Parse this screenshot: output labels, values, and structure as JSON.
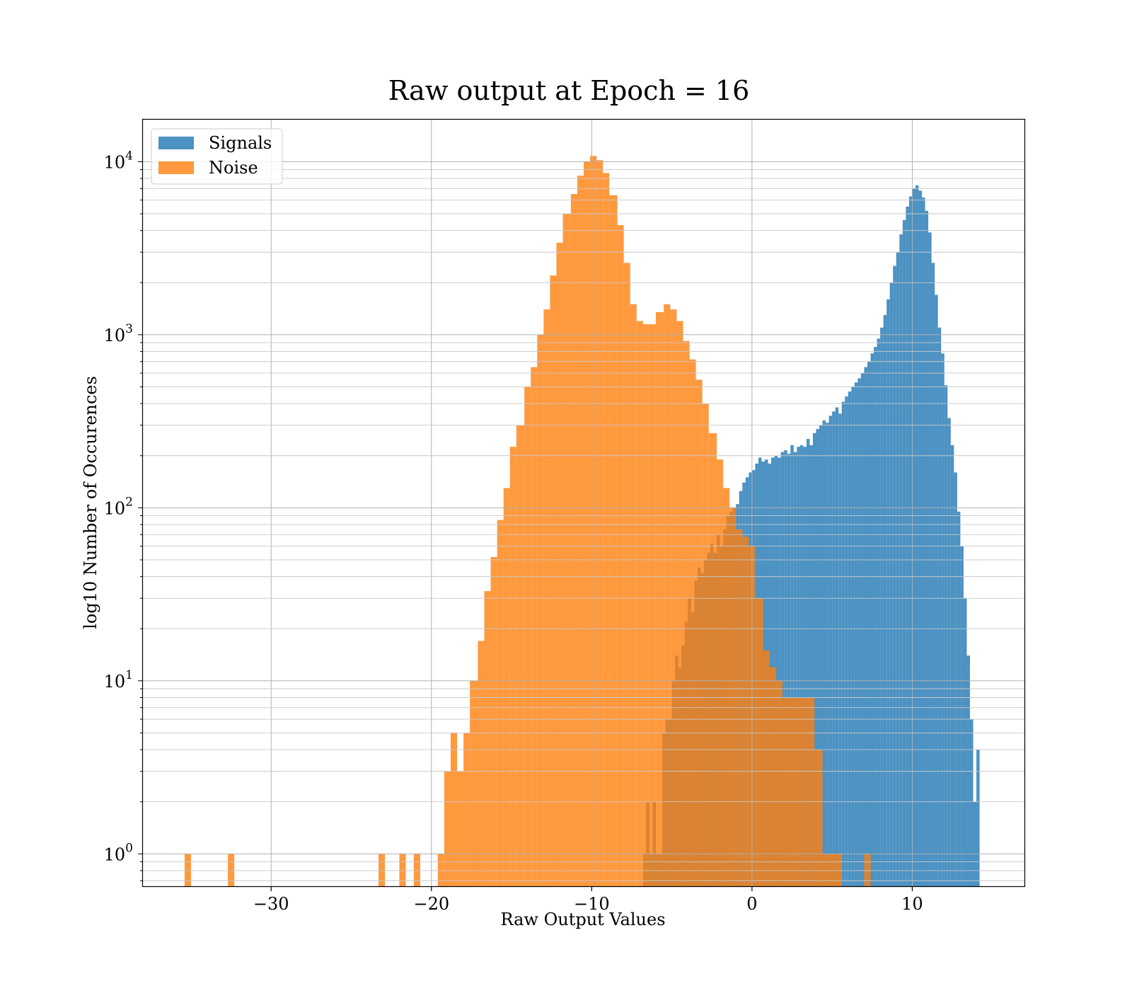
{
  "chart_data": {
    "type": "bar",
    "title": "Raw output at Epoch = 16",
    "xlabel": "Raw Output Values",
    "ylabel": "log10 Number of Occurences",
    "xlim": [
      -38,
      17
    ],
    "ylim": [
      0.65,
      17500
    ],
    "yscale": "log",
    "grid": true,
    "legend_position": "top-left",
    "x_ticks": [
      -30,
      -20,
      -10,
      0,
      10
    ],
    "x_tick_labels": [
      "−30",
      "−20",
      "−10",
      "0",
      "10"
    ],
    "y_ticks": [
      {
        "value": 1,
        "base": "10",
        "exp": "0"
      },
      {
        "value": 10,
        "base": "10",
        "exp": "1"
      },
      {
        "value": 100,
        "base": "10",
        "exp": "2"
      },
      {
        "value": 1000,
        "base": "10",
        "exp": "3"
      },
      {
        "value": 10000,
        "base": "10",
        "exp": "4"
      }
    ],
    "series": [
      {
        "name": "Signals",
        "color": "#1f77b4",
        "opacity": 0.8,
        "bins": [
          {
            "x0": -6.8,
            "x1": -6.6,
            "count": 1
          },
          {
            "x0": -6.6,
            "x1": -6.4,
            "count": 2
          },
          {
            "x0": -6.4,
            "x1": -6.2,
            "count": 1
          },
          {
            "x0": -6.2,
            "x1": -6.0,
            "count": 2
          },
          {
            "x0": -6.0,
            "x1": -5.8,
            "count": 1
          },
          {
            "x0": -5.8,
            "x1": -5.6,
            "count": 1
          },
          {
            "x0": -5.6,
            "x1": -5.4,
            "count": 5
          },
          {
            "x0": -5.4,
            "x1": -5.2,
            "count": 6
          },
          {
            "x0": -5.2,
            "x1": -5.0,
            "count": 6
          },
          {
            "x0": -5.0,
            "x1": -4.8,
            "count": 10
          },
          {
            "x0": -4.8,
            "x1": -4.6,
            "count": 14
          },
          {
            "x0": -4.6,
            "x1": -4.4,
            "count": 12
          },
          {
            "x0": -4.4,
            "x1": -4.2,
            "count": 16
          },
          {
            "x0": -4.2,
            "x1": -4.0,
            "count": 22
          },
          {
            "x0": -4.0,
            "x1": -3.8,
            "count": 30
          },
          {
            "x0": -3.8,
            "x1": -3.6,
            "count": 25
          },
          {
            "x0": -3.6,
            "x1": -3.4,
            "count": 38
          },
          {
            "x0": -3.4,
            "x1": -3.2,
            "count": 45
          },
          {
            "x0": -3.2,
            "x1": -3.0,
            "count": 42
          },
          {
            "x0": -3.0,
            "x1": -2.8,
            "count": 50
          },
          {
            "x0": -2.8,
            "x1": -2.6,
            "count": 55
          },
          {
            "x0": -2.6,
            "x1": -2.4,
            "count": 62
          },
          {
            "x0": -2.4,
            "x1": -2.2,
            "count": 55
          },
          {
            "x0": -2.2,
            "x1": -2.0,
            "count": 70
          },
          {
            "x0": -2.0,
            "x1": -1.8,
            "count": 60
          },
          {
            "x0": -1.8,
            "x1": -1.6,
            "count": 75
          },
          {
            "x0": -1.6,
            "x1": -1.4,
            "count": 90
          },
          {
            "x0": -1.4,
            "x1": -1.2,
            "count": 95
          },
          {
            "x0": -1.2,
            "x1": -1.0,
            "count": 100
          },
          {
            "x0": -1.0,
            "x1": -0.8,
            "count": 105
          },
          {
            "x0": -0.8,
            "x1": -0.6,
            "count": 125
          },
          {
            "x0": -0.6,
            "x1": -0.4,
            "count": 140
          },
          {
            "x0": -0.4,
            "x1": -0.2,
            "count": 150
          },
          {
            "x0": -0.2,
            "x1": 0.0,
            "count": 160
          },
          {
            "x0": 0.0,
            "x1": 0.2,
            "count": 165
          },
          {
            "x0": 0.2,
            "x1": 0.4,
            "count": 180
          },
          {
            "x0": 0.4,
            "x1": 0.6,
            "count": 195
          },
          {
            "x0": 0.6,
            "x1": 0.8,
            "count": 185
          },
          {
            "x0": 0.8,
            "x1": 1.0,
            "count": 190
          },
          {
            "x0": 1.0,
            "x1": 1.2,
            "count": 180
          },
          {
            "x0": 1.2,
            "x1": 1.4,
            "count": 195
          },
          {
            "x0": 1.4,
            "x1": 1.6,
            "count": 200
          },
          {
            "x0": 1.6,
            "x1": 1.8,
            "count": 195
          },
          {
            "x0": 1.8,
            "x1": 2.0,
            "count": 210
          },
          {
            "x0": 2.0,
            "x1": 2.2,
            "count": 215
          },
          {
            "x0": 2.2,
            "x1": 2.4,
            "count": 205
          },
          {
            "x0": 2.4,
            "x1": 2.6,
            "count": 230
          },
          {
            "x0": 2.6,
            "x1": 2.8,
            "count": 210
          },
          {
            "x0": 2.8,
            "x1": 3.0,
            "count": 225
          },
          {
            "x0": 3.0,
            "x1": 3.2,
            "count": 230
          },
          {
            "x0": 3.2,
            "x1": 3.4,
            "count": 225
          },
          {
            "x0": 3.4,
            "x1": 3.6,
            "count": 250
          },
          {
            "x0": 3.6,
            "x1": 3.8,
            "count": 230
          },
          {
            "x0": 3.8,
            "x1": 4.0,
            "count": 270
          },
          {
            "x0": 4.0,
            "x1": 4.2,
            "count": 285
          },
          {
            "x0": 4.2,
            "x1": 4.4,
            "count": 300
          },
          {
            "x0": 4.4,
            "x1": 4.6,
            "count": 320
          },
          {
            "x0": 4.6,
            "x1": 4.8,
            "count": 310
          },
          {
            "x0": 4.8,
            "x1": 5.0,
            "count": 340
          },
          {
            "x0": 5.0,
            "x1": 5.2,
            "count": 360
          },
          {
            "x0": 5.2,
            "x1": 5.4,
            "count": 380
          },
          {
            "x0": 5.4,
            "x1": 5.6,
            "count": 350
          },
          {
            "x0": 5.6,
            "x1": 5.8,
            "count": 410
          },
          {
            "x0": 5.8,
            "x1": 6.0,
            "count": 440
          },
          {
            "x0": 6.0,
            "x1": 6.2,
            "count": 470
          },
          {
            "x0": 6.2,
            "x1": 6.4,
            "count": 500
          },
          {
            "x0": 6.4,
            "x1": 6.6,
            "count": 530
          },
          {
            "x0": 6.6,
            "x1": 6.8,
            "count": 560
          },
          {
            "x0": 6.8,
            "x1": 7.0,
            "count": 600
          },
          {
            "x0": 7.0,
            "x1": 7.2,
            "count": 650
          },
          {
            "x0": 7.2,
            "x1": 7.4,
            "count": 700
          },
          {
            "x0": 7.4,
            "x1": 7.6,
            "count": 780
          },
          {
            "x0": 7.6,
            "x1": 7.8,
            "count": 850
          },
          {
            "x0": 7.8,
            "x1": 8.0,
            "count": 950
          },
          {
            "x0": 8.0,
            "x1": 8.2,
            "count": 1100
          },
          {
            "x0": 8.2,
            "x1": 8.4,
            "count": 1300
          },
          {
            "x0": 8.4,
            "x1": 8.6,
            "count": 1600
          },
          {
            "x0": 8.6,
            "x1": 8.8,
            "count": 2000
          },
          {
            "x0": 8.8,
            "x1": 9.0,
            "count": 2500
          },
          {
            "x0": 9.0,
            "x1": 9.2,
            "count": 3000
          },
          {
            "x0": 9.2,
            "x1": 9.4,
            "count": 3800
          },
          {
            "x0": 9.4,
            "x1": 9.6,
            "count": 4600
          },
          {
            "x0": 9.6,
            "x1": 9.8,
            "count": 5500
          },
          {
            "x0": 9.8,
            "x1": 10.0,
            "count": 6300
          },
          {
            "x0": 10.0,
            "x1": 10.2,
            "count": 7000
          },
          {
            "x0": 10.2,
            "x1": 10.4,
            "count": 7300
          },
          {
            "x0": 10.4,
            "x1": 10.6,
            "count": 6800
          },
          {
            "x0": 10.6,
            "x1": 10.8,
            "count": 6200
          },
          {
            "x0": 10.8,
            "x1": 11.0,
            "count": 5200
          },
          {
            "x0": 11.0,
            "x1": 11.2,
            "count": 3900
          },
          {
            "x0": 11.2,
            "x1": 11.4,
            "count": 2600
          },
          {
            "x0": 11.4,
            "x1": 11.6,
            "count": 1700
          },
          {
            "x0": 11.6,
            "x1": 11.8,
            "count": 1100
          },
          {
            "x0": 11.8,
            "x1": 12.0,
            "count": 780
          },
          {
            "x0": 12.0,
            "x1": 12.2,
            "count": 510
          },
          {
            "x0": 12.2,
            "x1": 12.4,
            "count": 330
          },
          {
            "x0": 12.4,
            "x1": 12.6,
            "count": 230
          },
          {
            "x0": 12.6,
            "x1": 12.8,
            "count": 160
          },
          {
            "x0": 12.8,
            "x1": 13.0,
            "count": 95
          },
          {
            "x0": 13.0,
            "x1": 13.2,
            "count": 60
          },
          {
            "x0": 13.2,
            "x1": 13.4,
            "count": 30
          },
          {
            "x0": 13.4,
            "x1": 13.6,
            "count": 14
          },
          {
            "x0": 13.6,
            "x1": 13.8,
            "count": 6
          },
          {
            "x0": 13.8,
            "x1": 14.0,
            "count": 2
          },
          {
            "x0": 14.0,
            "x1": 14.2,
            "count": 4
          }
        ]
      },
      {
        "name": "Noise",
        "color": "#ff7f0e",
        "opacity": 0.8,
        "bins": [
          {
            "x0": -35.4,
            "x1": -35.0,
            "count": 1
          },
          {
            "x0": -32.7,
            "x1": -32.3,
            "count": 1
          },
          {
            "x0": -23.3,
            "x1": -22.9,
            "count": 1
          },
          {
            "x0": -22.0,
            "x1": -21.6,
            "count": 1
          },
          {
            "x0": -21.1,
            "x1": -20.7,
            "count": 1
          },
          {
            "x0": -19.6,
            "x1": -19.2,
            "count": 1
          },
          {
            "x0": -19.2,
            "x1": -18.8,
            "count": 3
          },
          {
            "x0": -18.8,
            "x1": -18.4,
            "count": 5
          },
          {
            "x0": -18.4,
            "x1": -18.0,
            "count": 3
          },
          {
            "x0": -18.0,
            "x1": -17.6,
            "count": 5
          },
          {
            "x0": -17.6,
            "x1": -17.1,
            "count": 10
          },
          {
            "x0": -17.1,
            "x1": -16.7,
            "count": 17
          },
          {
            "x0": -16.7,
            "x1": -16.3,
            "count": 33
          },
          {
            "x0": -16.3,
            "x1": -15.9,
            "count": 52
          },
          {
            "x0": -15.9,
            "x1": -15.5,
            "count": 85
          },
          {
            "x0": -15.5,
            "x1": -15.1,
            "count": 130
          },
          {
            "x0": -15.1,
            "x1": -14.7,
            "count": 225
          },
          {
            "x0": -14.7,
            "x1": -14.2,
            "count": 300
          },
          {
            "x0": -14.2,
            "x1": -13.8,
            "count": 500
          },
          {
            "x0": -13.8,
            "x1": -13.4,
            "count": 650
          },
          {
            "x0": -13.4,
            "x1": -13.0,
            "count": 1000
          },
          {
            "x0": -13.0,
            "x1": -12.6,
            "count": 1400
          },
          {
            "x0": -12.6,
            "x1": -12.2,
            "count": 2200
          },
          {
            "x0": -12.2,
            "x1": -11.8,
            "count": 3400
          },
          {
            "x0": -11.8,
            "x1": -11.3,
            "count": 5000
          },
          {
            "x0": -11.3,
            "x1": -10.9,
            "count": 6500
          },
          {
            "x0": -10.9,
            "x1": -10.5,
            "count": 8300
          },
          {
            "x0": -10.5,
            "x1": -10.1,
            "count": 10000
          },
          {
            "x0": -10.1,
            "x1": -9.7,
            "count": 10800
          },
          {
            "x0": -9.7,
            "x1": -9.3,
            "count": 10200
          },
          {
            "x0": -9.3,
            "x1": -8.9,
            "count": 8600
          },
          {
            "x0": -8.9,
            "x1": -8.4,
            "count": 6400
          },
          {
            "x0": -8.4,
            "x1": -8.0,
            "count": 4300
          },
          {
            "x0": -8.0,
            "x1": -7.6,
            "count": 2600
          },
          {
            "x0": -7.6,
            "x1": -7.2,
            "count": 1500
          },
          {
            "x0": -7.2,
            "x1": -6.8,
            "count": 1200
          },
          {
            "x0": -6.8,
            "x1": -6.4,
            "count": 1150
          },
          {
            "x0": -6.4,
            "x1": -6.0,
            "count": 1150
          },
          {
            "x0": -6.0,
            "x1": -5.5,
            "count": 1350
          },
          {
            "x0": -5.5,
            "x1": -5.1,
            "count": 1500
          },
          {
            "x0": -5.1,
            "x1": -4.7,
            "count": 1400
          },
          {
            "x0": -4.7,
            "x1": -4.3,
            "count": 1200
          },
          {
            "x0": -4.3,
            "x1": -3.9,
            "count": 920
          },
          {
            "x0": -3.9,
            "x1": -3.5,
            "count": 720
          },
          {
            "x0": -3.5,
            "x1": -3.1,
            "count": 550
          },
          {
            "x0": -3.1,
            "x1": -2.7,
            "count": 400
          },
          {
            "x0": -2.7,
            "x1": -2.2,
            "count": 270
          },
          {
            "x0": -2.2,
            "x1": -1.8,
            "count": 190
          },
          {
            "x0": -1.8,
            "x1": -1.4,
            "count": 130
          },
          {
            "x0": -1.4,
            "x1": -1.0,
            "count": 100
          },
          {
            "x0": -1.0,
            "x1": -0.6,
            "count": 75
          },
          {
            "x0": -0.6,
            "x1": -0.2,
            "count": 68
          },
          {
            "x0": -0.2,
            "x1": 0.2,
            "count": 60
          },
          {
            "x0": 0.2,
            "x1": 0.7,
            "count": 30
          },
          {
            "x0": 0.7,
            "x1": 1.1,
            "count": 15
          },
          {
            "x0": 1.1,
            "x1": 1.5,
            "count": 12
          },
          {
            "x0": 1.5,
            "x1": 1.9,
            "count": 10
          },
          {
            "x0": 1.9,
            "x1": 2.3,
            "count": 8
          },
          {
            "x0": 2.3,
            "x1": 2.7,
            "count": 8
          },
          {
            "x0": 2.7,
            "x1": 3.1,
            "count": 8
          },
          {
            "x0": 3.1,
            "x1": 3.5,
            "count": 8
          },
          {
            "x0": 3.5,
            "x1": 3.9,
            "count": 8
          },
          {
            "x0": 3.9,
            "x1": 4.4,
            "count": 4
          },
          {
            "x0": 4.4,
            "x1": 4.8,
            "count": 1
          },
          {
            "x0": 4.8,
            "x1": 5.2,
            "count": 1
          },
          {
            "x0": 5.2,
            "x1": 5.6,
            "count": 1
          },
          {
            "x0": 7.0,
            "x1": 7.4,
            "count": 1
          }
        ]
      }
    ]
  }
}
